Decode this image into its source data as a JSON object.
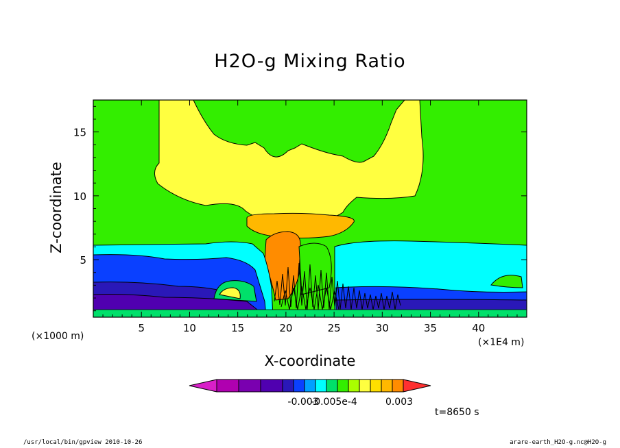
{
  "window": {
    "footer_left": "/usr/local/bin/gpview  2010-10-26",
    "footer_right": "arare-earth_H2O-g.nc@H2O-g",
    "time_label": "t=8650 s",
    "x_unit_left": "(×1000 m)",
    "x_unit_right": "(×1E4 m)"
  },
  "chart_data": {
    "type": "heatmap",
    "title": "H2O-g Mixing Ratio",
    "xlabel": "X-coordinate",
    "ylabel": "Z-coordinate",
    "xlim": [
      0,
      45
    ],
    "ylim": [
      0.5,
      17.5
    ],
    "x_ticks": [
      5,
      10,
      15,
      20,
      25,
      30,
      35,
      40
    ],
    "y_ticks": [
      5,
      10,
      15
    ],
    "colorbar": {
      "colors": [
        "#d81fc8",
        "#b000b0",
        "#7a00b0",
        "#5000b0",
        "#2a18b8",
        "#0a40ff",
        "#00a0ff",
        "#00ffff",
        "#00e06a",
        "#33ee00",
        "#aaff00",
        "#ffff40",
        "#ffdf00",
        "#ffb800",
        "#ff8c00",
        "#ff3030"
      ],
      "tick_labels": [
        "-0.003",
        "-0.005e-4",
        "0.003"
      ],
      "extend": "both"
    },
    "layers": [
      {
        "name": "surface_blue",
        "color": "#0a40ff"
      },
      {
        "name": "boundary_cyan",
        "color": "#00ffff"
      },
      {
        "name": "background_green",
        "color": "#33ee00"
      },
      {
        "name": "upper_yellow",
        "color": "#ffff40"
      },
      {
        "name": "anvil_orange",
        "color": "#ffb800"
      },
      {
        "name": "core_orange",
        "color": "#ff8c00"
      }
    ]
  }
}
